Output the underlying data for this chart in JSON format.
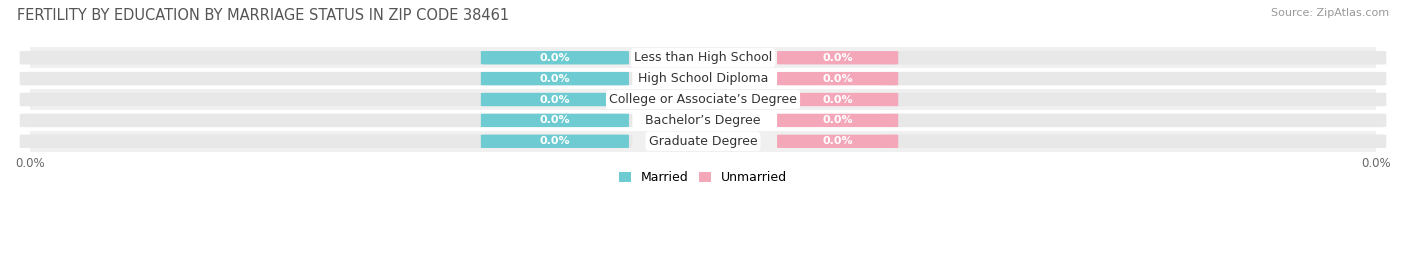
{
  "title": "FERTILITY BY EDUCATION BY MARRIAGE STATUS IN ZIP CODE 38461",
  "source": "Source: ZipAtlas.com",
  "categories": [
    "Less than High School",
    "High School Diploma",
    "College or Associate’s Degree",
    "Bachelor’s Degree",
    "Graduate Degree"
  ],
  "married_values": [
    0.0,
    0.0,
    0.0,
    0.0,
    0.0
  ],
  "unmarried_values": [
    0.0,
    0.0,
    0.0,
    0.0,
    0.0
  ],
  "married_color": "#6DCBD1",
  "unmarried_color": "#F4A7B9",
  "bar_bg_color": "#E8E8E8",
  "label_value_color": "#FFFFFF",
  "title_fontsize": 10.5,
  "source_fontsize": 8,
  "axis_label_fontsize": 8.5,
  "bar_label_fontsize": 8,
  "category_fontsize": 9,
  "legend_fontsize": 9,
  "bar_height": 0.62,
  "background_color": "#FFFFFF",
  "row_stripe_color": "#F0F0F0"
}
